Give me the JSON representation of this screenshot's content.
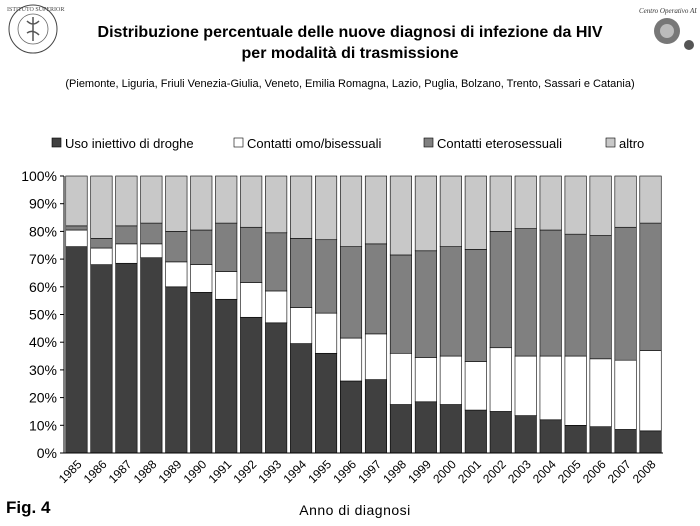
{
  "figure": {
    "title_line1": "Distribuzione percentuale delle nuove diagnosi di infezione da HIV",
    "title_line2": "per modalità di trasmissione",
    "subtitle": "(Piemonte, Liguria, Friuli Venezia-Giulia, Veneto, Emilia Romagna, Lazio,  Puglia, Bolzano, Trento, Sassari e Catania)",
    "fig_label": "Fig. 4",
    "logo_left_text": "ISTITUTO SUPERIORE DI SANITÀ",
    "logo_right_text": "Centro Operativo AIDS"
  },
  "chart_data": {
    "type": "bar",
    "stacked": true,
    "title": "Distribuzione percentuale delle nuove diagnosi di infezione da HIV per modalità di trasmissione",
    "xlabel": "Anno di diagnosi",
    "ylabel": "",
    "ylim": [
      0,
      100
    ],
    "yticks": [
      "0%",
      "10%",
      "20%",
      "30%",
      "40%",
      "50%",
      "60%",
      "70%",
      "80%",
      "90%",
      "100%"
    ],
    "grid": false,
    "legend_position": "top",
    "categories": [
      "1985",
      "1986",
      "1987",
      "1988",
      "1989",
      "1990",
      "1991",
      "1992",
      "1993",
      "1994",
      "1995",
      "1996",
      "1997",
      "1998",
      "1999",
      "2000",
      "2001",
      "2002",
      "2003",
      "2004",
      "2005",
      "2006",
      "2007",
      "2008"
    ],
    "series": [
      {
        "name": "Uso iniettivo di droghe",
        "color": "#404040",
        "values": [
          74.5,
          68,
          68.5,
          70.5,
          60,
          58,
          55.5,
          49,
          47,
          39.5,
          36,
          26,
          26.5,
          17.5,
          18.5,
          17.5,
          15.5,
          15,
          13.5,
          12,
          10,
          9.5,
          8.5,
          8
        ]
      },
      {
        "name": "Contatti omo/bisessuali",
        "color": "#ffffff",
        "values": [
          6,
          6,
          7,
          5,
          9,
          10,
          10,
          12.5,
          11.5,
          13,
          14.5,
          15.5,
          16.5,
          18.5,
          16,
          17.5,
          17.5,
          23,
          21.5,
          23,
          25,
          24.5,
          25,
          29
        ]
      },
      {
        "name": "Contatti eterosessuali",
        "color": "#808080",
        "values": [
          1.5,
          3.5,
          6.5,
          7.5,
          11,
          12.5,
          17.5,
          20,
          21,
          25,
          26.5,
          33,
          32.5,
          35.5,
          38.5,
          39.5,
          40.5,
          42,
          46,
          45.5,
          44,
          44.5,
          48,
          46
        ]
      },
      {
        "name": "altro",
        "color": "#c8c8c8",
        "values": [
          18,
          22.5,
          18,
          17,
          20,
          19.5,
          17,
          18.5,
          20.5,
          22.5,
          23,
          25.5,
          24.5,
          28.5,
          27,
          25.5,
          26.5,
          20,
          19,
          19.5,
          21,
          21.5,
          18.5,
          17
        ]
      }
    ]
  }
}
